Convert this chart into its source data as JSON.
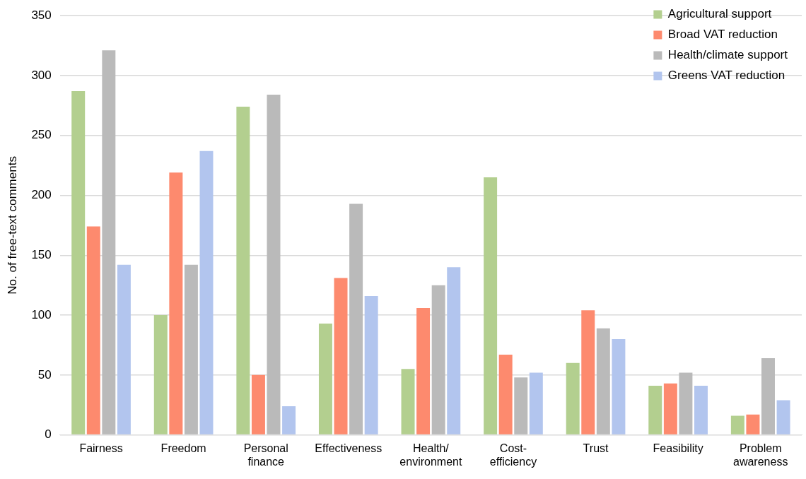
{
  "chart_data": {
    "type": "bar",
    "ylabel": "No. of free-text comments",
    "categories": [
      "Fairness",
      "Freedom",
      "Personal finance",
      "Effectiveness",
      "Health/environment",
      "Cost-efficiency",
      "Trust",
      "Feasibility",
      "Problem awareness"
    ],
    "series": [
      {
        "name": "Agricultural support",
        "color": "#b3cf8f",
        "values": [
          287,
          100,
          274,
          93,
          55,
          215,
          60,
          41,
          16
        ]
      },
      {
        "name": "Broad VAT reduction",
        "color": "#fd8a6e",
        "values": [
          174,
          219,
          50,
          131,
          106,
          67,
          104,
          43,
          17
        ]
      },
      {
        "name": "Health/climate support",
        "color": "#bababa",
        "values": [
          321,
          142,
          284,
          193,
          125,
          48,
          89,
          52,
          64
        ]
      },
      {
        "name": "Greens VAT reduction",
        "color": "#b2c5ee",
        "values": [
          142,
          237,
          24,
          116,
          140,
          52,
          80,
          41,
          29
        ]
      }
    ],
    "ylim": [
      0,
      350
    ],
    "yticks": [
      0,
      50,
      100,
      150,
      200,
      250,
      300,
      350
    ],
    "grid": "y",
    "legend": "top right"
  }
}
